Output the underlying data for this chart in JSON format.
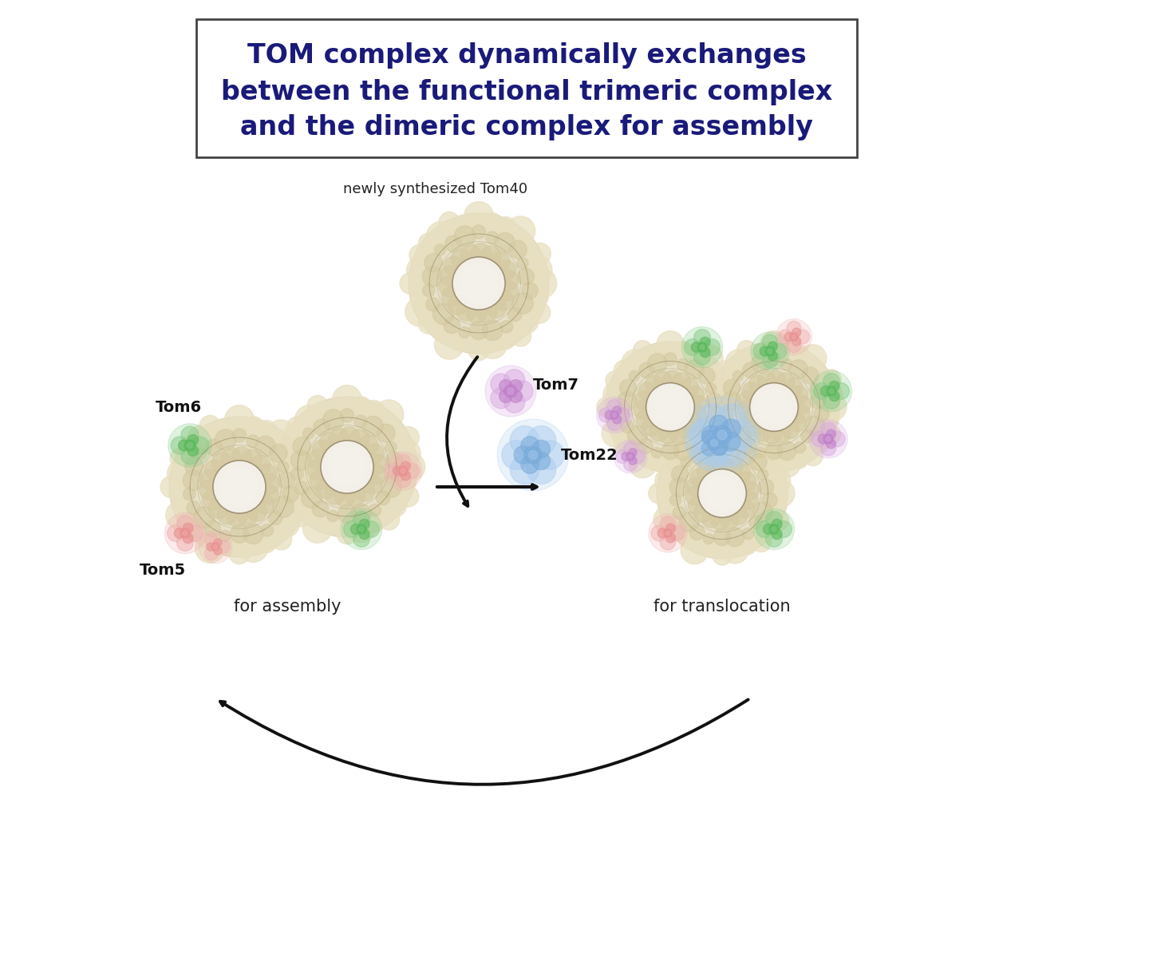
{
  "title_line1": "TOM complex dynamically exchanges",
  "title_line2": "between the functional trimeric complex",
  "title_line3": "and the dimeric complex for assembly",
  "title_color": "#1a1a7a",
  "title_fontsize": 24,
  "bg_color": "#ffffff",
  "label_tom7": "Tom7",
  "label_tom22": "Tom22",
  "label_tom6": "Tom6",
  "label_tom5": "Tom5",
  "label_newly": "newly synthesized Tom40",
  "label_assembly": "for assembly",
  "label_translocation": "for translocation",
  "color_tan": "#e8dfc0",
  "color_tan_mid": "#d4c9a0",
  "color_tan_dark": "#b0a070",
  "color_tan_line": "#7a6a40",
  "color_green": "#5cb85c",
  "color_green2": "#88cc88",
  "color_pink": "#e89090",
  "color_pink2": "#f0b0b0",
  "color_blue": "#7aabda",
  "color_blue2": "#aaccee",
  "color_purple": "#c080c8",
  "color_purple2": "#d8a8e0",
  "color_arrow": "#111111"
}
